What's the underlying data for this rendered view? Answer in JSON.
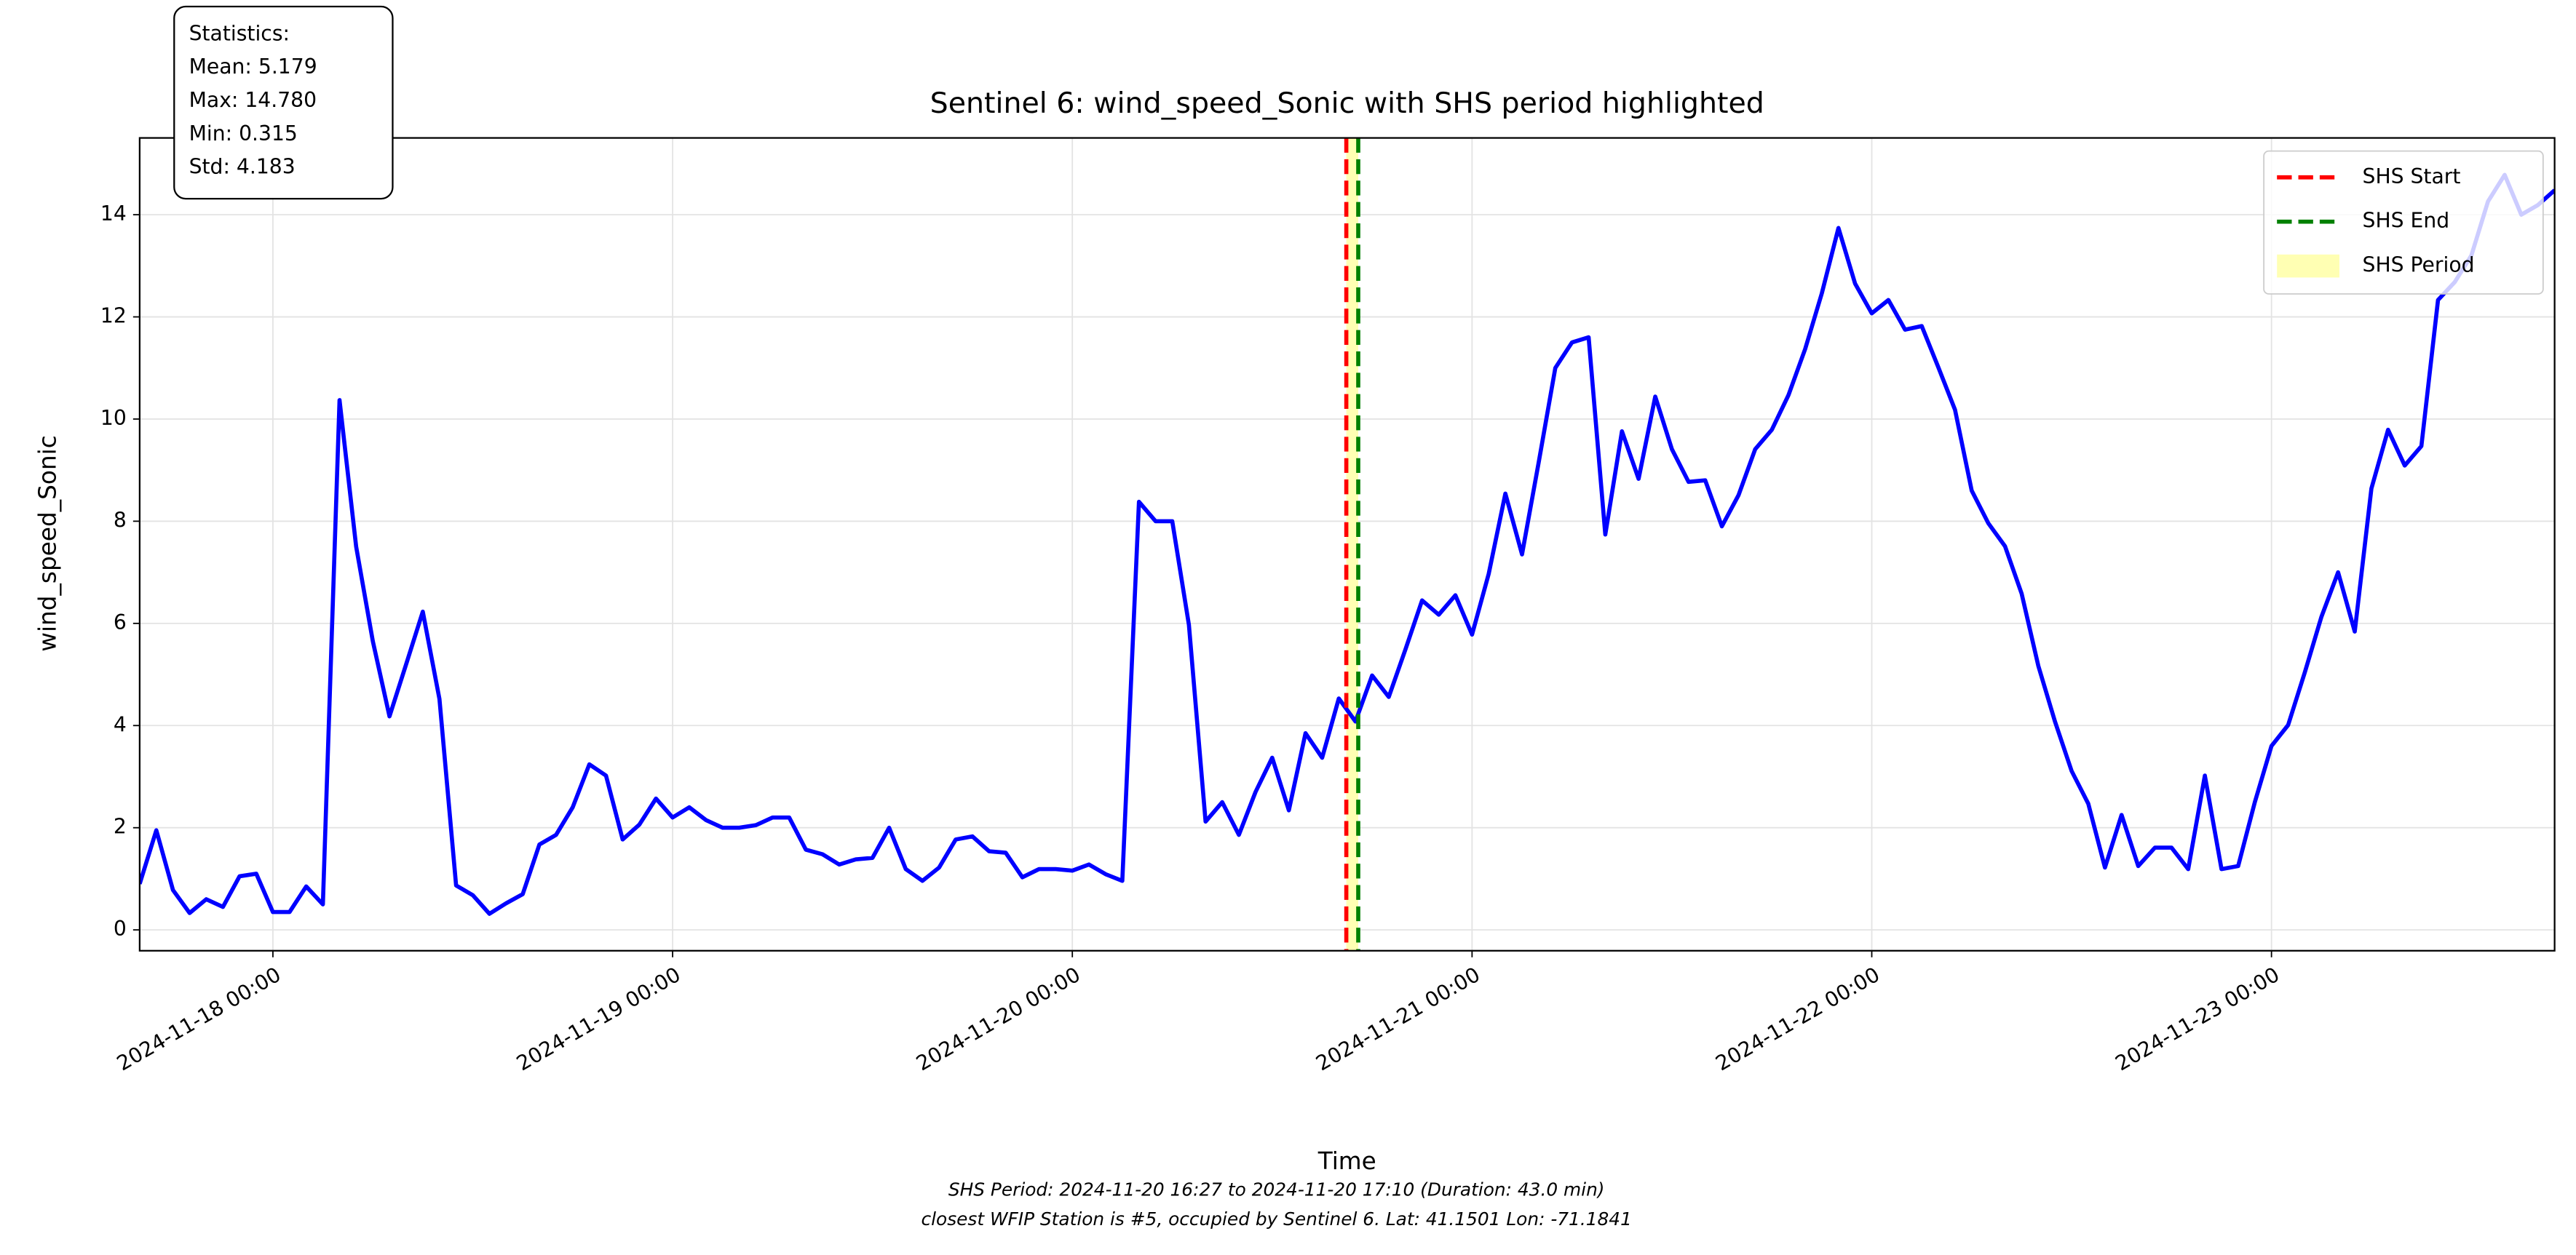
{
  "chart_data": {
    "type": "line",
    "title": "Sentinel 6: wind_speed_Sonic with SHS period highlighted",
    "xlabel": "Time",
    "ylabel": "wind_speed_Sonic",
    "x": [
      "2024-11-17 16:00",
      "2024-11-17 17:00",
      "2024-11-17 18:00",
      "2024-11-17 19:00",
      "2024-11-17 20:00",
      "2024-11-17 21:00",
      "2024-11-17 22:00",
      "2024-11-17 23:00",
      "2024-11-18 00:00",
      "2024-11-18 01:00",
      "2024-11-18 02:00",
      "2024-11-18 03:00",
      "2024-11-18 04:00",
      "2024-11-18 05:00",
      "2024-11-18 06:00",
      "2024-11-18 07:00",
      "2024-11-18 08:00",
      "2024-11-18 09:00",
      "2024-11-18 10:00",
      "2024-11-18 11:00",
      "2024-11-18 12:00",
      "2024-11-18 13:00",
      "2024-11-18 14:00",
      "2024-11-18 15:00",
      "2024-11-18 16:00",
      "2024-11-18 17:00",
      "2024-11-18 18:00",
      "2024-11-18 19:00",
      "2024-11-18 20:00",
      "2024-11-18 21:00",
      "2024-11-18 22:00",
      "2024-11-18 23:00",
      "2024-11-19 00:00",
      "2024-11-19 01:00",
      "2024-11-19 02:00",
      "2024-11-19 03:00",
      "2024-11-19 04:00",
      "2024-11-19 05:00",
      "2024-11-19 06:00",
      "2024-11-19 07:00",
      "2024-11-19 08:00",
      "2024-11-19 09:00",
      "2024-11-19 10:00",
      "2024-11-19 11:00",
      "2024-11-19 12:00",
      "2024-11-19 13:00",
      "2024-11-19 14:00",
      "2024-11-19 15:00",
      "2024-11-19 16:00",
      "2024-11-19 17:00",
      "2024-11-19 18:00",
      "2024-11-19 19:00",
      "2024-11-19 20:00",
      "2024-11-19 21:00",
      "2024-11-19 22:00",
      "2024-11-19 23:00",
      "2024-11-20 00:00",
      "2024-11-20 01:00",
      "2024-11-20 02:00",
      "2024-11-20 03:00",
      "2024-11-20 04:00",
      "2024-11-20 05:00",
      "2024-11-20 06:00",
      "2024-11-20 07:00",
      "2024-11-20 08:00",
      "2024-11-20 09:00",
      "2024-11-20 10:00",
      "2024-11-20 11:00",
      "2024-11-20 12:00",
      "2024-11-20 13:00",
      "2024-11-20 14:00",
      "2024-11-20 15:00",
      "2024-11-20 16:00",
      "2024-11-20 17:00",
      "2024-11-20 18:00",
      "2024-11-20 19:00",
      "2024-11-20 20:00",
      "2024-11-20 21:00",
      "2024-11-20 22:00",
      "2024-11-20 23:00",
      "2024-11-21 00:00",
      "2024-11-21 01:00",
      "2024-11-21 02:00",
      "2024-11-21 03:00",
      "2024-11-21 04:00",
      "2024-11-21 05:00",
      "2024-11-21 06:00",
      "2024-11-21 07:00",
      "2024-11-21 08:00",
      "2024-11-21 09:00",
      "2024-11-21 10:00",
      "2024-11-21 11:00",
      "2024-11-21 12:00",
      "2024-11-21 13:00",
      "2024-11-21 14:00",
      "2024-11-21 15:00",
      "2024-11-21 16:00",
      "2024-11-21 17:00",
      "2024-11-21 18:00",
      "2024-11-21 19:00",
      "2024-11-21 20:00",
      "2024-11-21 21:00",
      "2024-11-21 22:00",
      "2024-11-21 23:00",
      "2024-11-22 00:00",
      "2024-11-22 01:00",
      "2024-11-22 02:00",
      "2024-11-22 03:00",
      "2024-11-22 04:00",
      "2024-11-22 05:00",
      "2024-11-22 06:00",
      "2024-11-22 07:00",
      "2024-11-22 08:00",
      "2024-11-22 09:00",
      "2024-11-22 10:00",
      "2024-11-22 11:00",
      "2024-11-22 12:00",
      "2024-11-22 13:00",
      "2024-11-22 14:00",
      "2024-11-22 15:00",
      "2024-11-22 16:00",
      "2024-11-22 17:00",
      "2024-11-22 18:00",
      "2024-11-22 19:00",
      "2024-11-22 20:00",
      "2024-11-22 21:00",
      "2024-11-22 22:00",
      "2024-11-22 23:00",
      "2024-11-23 00:00",
      "2024-11-23 01:00",
      "2024-11-23 02:00",
      "2024-11-23 03:00",
      "2024-11-23 04:00",
      "2024-11-23 05:00",
      "2024-11-23 06:00",
      "2024-11-23 07:00",
      "2024-11-23 08:00",
      "2024-11-23 09:00",
      "2024-11-23 10:00",
      "2024-11-23 11:00",
      "2024-11-23 12:00",
      "2024-11-23 13:00",
      "2024-11-23 14:00",
      "2024-11-23 15:00",
      "2024-11-23 16:00",
      "2024-11-23 17:00"
    ],
    "series": [
      {
        "color": "#0000ff",
        "values": [
          0.9,
          1.95,
          0.78,
          0.33,
          0.6,
          0.45,
          1.05,
          1.1,
          0.35,
          0.35,
          0.85,
          0.5,
          10.37,
          7.5,
          5.65,
          4.18,
          5.2,
          6.23,
          4.52,
          0.87,
          0.68,
          0.315,
          0.52,
          0.7,
          1.67,
          1.86,
          2.4,
          3.24,
          3.02,
          1.77,
          2.06,
          2.57,
          2.2,
          2.4,
          2.15,
          2.0,
          2.0,
          2.05,
          2.2,
          2.2,
          1.57,
          1.48,
          1.28,
          1.38,
          1.41,
          2.0,
          1.19,
          0.96,
          1.22,
          1.77,
          1.83,
          1.54,
          1.51,
          1.03,
          1.19,
          1.19,
          1.16,
          1.28,
          1.09,
          0.96,
          8.38,
          8.0,
          8.0,
          5.97,
          2.12,
          2.5,
          1.86,
          2.7,
          3.37,
          2.34,
          3.85,
          3.37,
          4.53,
          4.08,
          4.98,
          4.56,
          5.49,
          6.45,
          6.17,
          6.55,
          5.78,
          6.97,
          8.54,
          7.35,
          9.15,
          11.0,
          11.5,
          11.6,
          7.74,
          9.76,
          8.83,
          10.44,
          9.41,
          8.77,
          8.8,
          7.9,
          8.51,
          9.41,
          9.79,
          10.47,
          11.37,
          12.46,
          13.74,
          12.65,
          12.07,
          12.33,
          11.75,
          11.82,
          11.01,
          10.18,
          8.6,
          7.96,
          7.51,
          6.58,
          5.17,
          4.08,
          3.11,
          2.47,
          1.22,
          2.25,
          1.25,
          1.61,
          1.61,
          1.19,
          3.02,
          1.19,
          1.25,
          2.5,
          3.6,
          4.01,
          5.04,
          6.13,
          7.0,
          5.84,
          8.64,
          9.79,
          9.09,
          9.47,
          12.33,
          12.68,
          13.2,
          14.26,
          14.78,
          14.0,
          14.19,
          14.48
        ]
      }
    ],
    "vlines": [
      {
        "name": "SHS Start",
        "x": "2024-11-20 16:27",
        "color": "#ff0000"
      },
      {
        "name": "SHS End",
        "x": "2024-11-20 17:10",
        "color": "#008000"
      }
    ],
    "span": {
      "name": "SHS Period",
      "x": [
        "2024-11-20 16:27",
        "2024-11-20 17:10"
      ],
      "color": "#ffffb3"
    },
    "xlim": [
      "2024-11-17 16:00",
      "2024-11-23 17:00"
    ],
    "xticks": [
      "2024-11-18 00:00",
      "2024-11-19 00:00",
      "2024-11-20 00:00",
      "2024-11-21 00:00",
      "2024-11-22 00:00",
      "2024-11-23 00:00"
    ],
    "ylim": [
      -0.408,
      15.503
    ],
    "yticks": [
      0,
      2,
      4,
      6,
      8,
      10,
      12,
      14
    ],
    "grid": true,
    "legend": "upper right",
    "stats_box": [
      "Statistics:",
      "Mean: 5.179",
      "Max: 14.780",
      "Min: 0.315",
      "Std: 4.183"
    ],
    "footnotes": [
      "SHS Period: 2024-11-20 16:27 to 2024-11-20 17:10 (Duration: 43.0 min)",
      "closest WFIP Station is #5, occupied by Sentinel 6. Lat: 41.1501 Lon: -71.1841"
    ]
  }
}
